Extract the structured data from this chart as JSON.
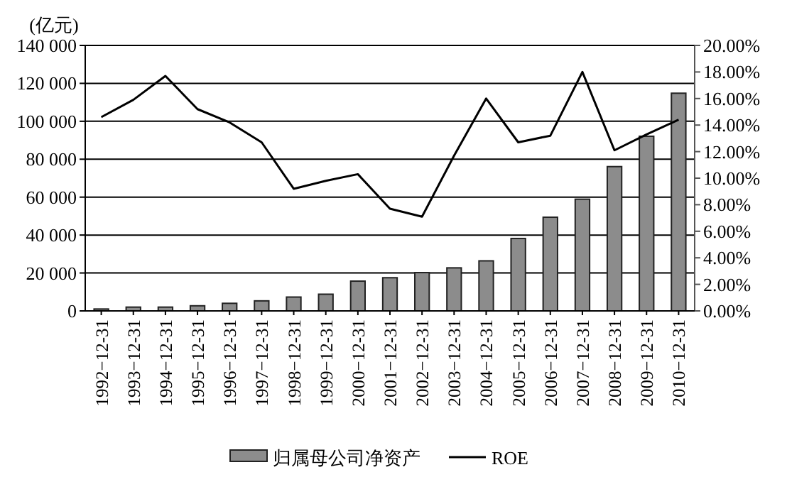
{
  "chart_data": {
    "type": "bar",
    "ylabel": "(亿元)",
    "categories": [
      "1992−12-31",
      "1993−12-31",
      "1994−12-31",
      "1995−12-31",
      "1996−12-31",
      "1997−12-31",
      "1998−12-31",
      "1999−12-31",
      "2000−12-31",
      "2001−12-31",
      "2002−12-31",
      "2003−12-31",
      "2004−12-31",
      "2005−12-31",
      "2006−12-31",
      "2007−12-31",
      "2008−12-31",
      "2009−12-31",
      "2010−12-31"
    ],
    "series": [
      {
        "name": "归属母公司净资产",
        "color": "#8c8c8c",
        "values": [
          1000,
          2000,
          2000,
          2700,
          4000,
          5300,
          7300,
          8800,
          15700,
          17500,
          20200,
          22700,
          26400,
          38200,
          49400,
          58900,
          76100,
          92100,
          114800
        ]
      },
      {
        "name": "ROE",
        "type": "line",
        "axis": "y2",
        "color": "#000000",
        "values": [
          14.6,
          15.9,
          17.7,
          15.2,
          14.2,
          12.7,
          9.2,
          9.8,
          10.3,
          7.7,
          7.1,
          11.7,
          16.0,
          12.7,
          13.2,
          18.0,
          12.1,
          13.3,
          14.4
        ]
      }
    ],
    "ylim": [
      0,
      140000
    ],
    "yticks": [
      0,
      {
        "value": 20000,
        "label": "20 000"
      },
      {
        "value": 40000,
        "label": "40 000"
      },
      {
        "value": 60000,
        "label": "60 000"
      },
      {
        "value": 80000,
        "label": "80 000"
      },
      {
        "value": 100000,
        "label": "100 000"
      },
      {
        "value": 120000,
        "label": "120 000"
      },
      {
        "value": 140000,
        "label": "140 000"
      }
    ],
    "y2lim": [
      0,
      20
    ],
    "y2ticks": [
      {
        "value": 0,
        "label": "0.00%"
      },
      {
        "value": 2,
        "label": "2.00%"
      },
      {
        "value": 4,
        "label": "4.00%"
      },
      {
        "value": 6,
        "label": "6.00%"
      },
      {
        "value": 8,
        "label": "8.00%"
      },
      {
        "value": 10,
        "label": "10.00%"
      },
      {
        "value": 12,
        "label": "12.00%"
      },
      {
        "value": 14,
        "label": "14.00%"
      },
      {
        "value": 16,
        "label": "16.00%"
      },
      {
        "value": 18,
        "label": "18.00%"
      },
      {
        "value": 20,
        "label": "20.00%"
      }
    ],
    "grid": "y",
    "legend": "bottom"
  }
}
